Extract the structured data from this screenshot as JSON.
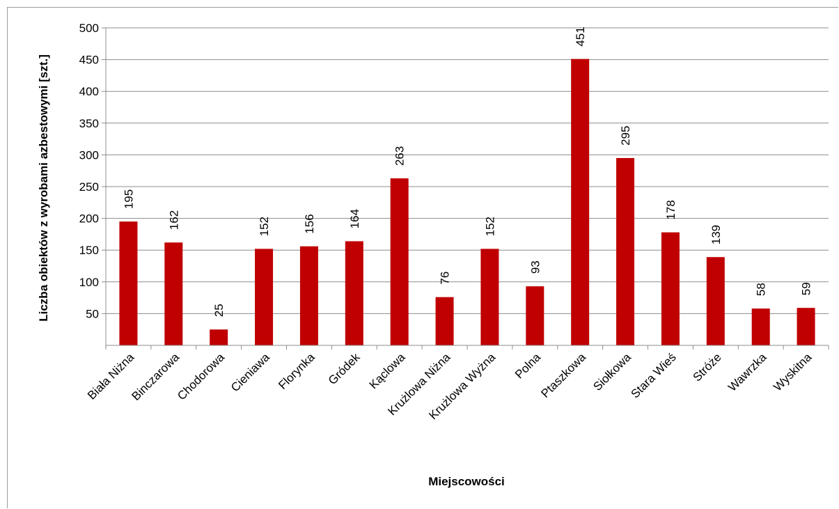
{
  "chart_data": {
    "type": "bar",
    "xlabel": "Miejscowości",
    "ylabel": "Liczba obiektów z wyrobami azbestowymi [szt.]",
    "ylim": [
      0,
      500
    ],
    "yticks": [
      "50",
      "100",
      "150",
      "200",
      "250",
      "300",
      "350",
      "400",
      "450",
      "500"
    ],
    "grid": true,
    "bar_color": "#c00000",
    "categories": [
      "Biała Niżna",
      "Binczarowa",
      "Chodorowa",
      "Cieniawa",
      "Florynka",
      "Gródek",
      "Kąclowa",
      "Krużlowa Niżna",
      "Krużlowa Wyżna",
      "Polna",
      "Ptaszkowa",
      "Siołkowa",
      "Stara Wieś",
      "Stróże",
      "Wawrzka",
      "Wyskitna"
    ],
    "values": [
      195,
      162,
      25,
      152,
      156,
      164,
      263,
      76,
      152,
      93,
      451,
      295,
      178,
      139,
      58,
      59
    ]
  }
}
